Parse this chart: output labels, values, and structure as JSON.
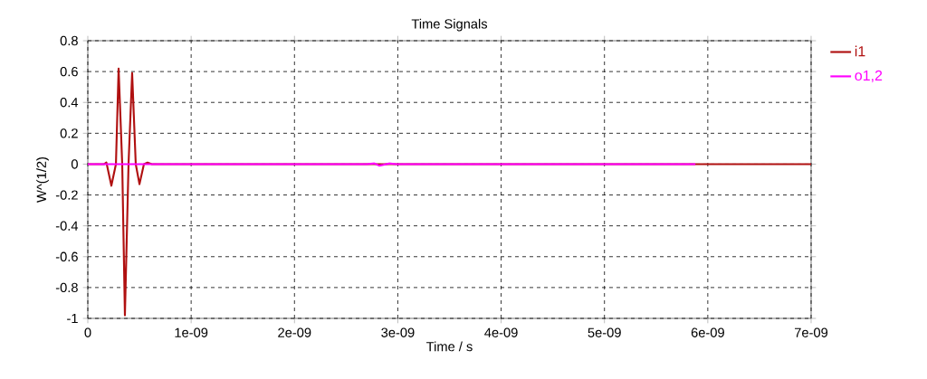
{
  "chart_data": {
    "type": "line",
    "title": "Time Signals",
    "xlabel": "Time / s",
    "ylabel": "W^(1/2)",
    "xlim": [
      0,
      7e-09
    ],
    "ylim": [
      -1,
      0.8
    ],
    "xticks": [
      0,
      {
        "value": 1e-09,
        "label": "1e-09"
      },
      {
        "value": 2e-09,
        "label": "2e-09"
      },
      {
        "value": 3e-09,
        "label": "3e-09"
      },
      {
        "value": 4e-09,
        "label": "4e-09"
      },
      {
        "value": 5e-09,
        "label": "5e-09"
      },
      {
        "value": 6e-09,
        "label": "6e-09"
      },
      {
        "value": 7e-09,
        "label": "7e-09"
      }
    ],
    "yticks": [
      -1,
      -0.8,
      -0.6,
      -0.4,
      -0.2,
      0,
      0.2,
      0.4,
      0.6,
      0.8
    ],
    "grid": true,
    "legend": "top right",
    "marker": "none",
    "line_style": "solid",
    "series": [
      {
        "name": "i1",
        "color": "#b01010",
        "x": [
          0,
          1.58e-10,
          1.8e-10,
          2.28e-10,
          2.72e-10,
          2.98e-10,
          3.33e-10,
          3.59e-10,
          3.94e-10,
          4.29e-10,
          4.64e-10,
          5e-10,
          5.43e-10,
          5.78e-10,
          6.2e-10,
          7e-09
        ],
        "values": [
          0,
          0,
          0.01,
          -0.14,
          0,
          0.62,
          0,
          -0.98,
          0,
          0.59,
          0,
          -0.13,
          0,
          0.01,
          0,
          0
        ]
      },
      {
        "name": "o1,2",
        "color": "#ff00ff",
        "x": [
          0,
          2.7e-09,
          2.77e-09,
          2.82e-09,
          2.86e-09,
          2.92e-09,
          2.98e-09,
          5.88e-09
        ],
        "values": [
          0,
          0,
          0.005,
          -0.01,
          -0.005,
          0.005,
          0,
          0
        ]
      }
    ]
  }
}
